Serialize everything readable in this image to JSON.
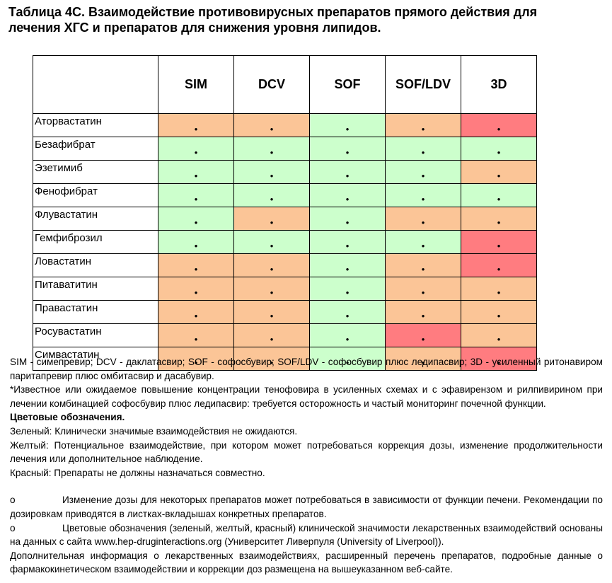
{
  "title_lines": [
    "Таблица 4С.  Взаимодействие противовирусных препаратов прямого действия для",
    "лечения ХГС и препаратов для снижения уровня липидов."
  ],
  "table": {
    "columns": [
      "SIM",
      "DCV",
      "SOF",
      "SOF/LDV",
      "3D"
    ],
    "bullet": "•",
    "palette": {
      "green": "#ccffcc",
      "orange": "#fbc597",
      "red": "#ff7c80"
    },
    "rows": [
      {
        "name": "Аторвастатин",
        "colors": [
          "orange",
          "orange",
          "green",
          "orange",
          "red"
        ]
      },
      {
        "name": "Безафибрат",
        "colors": [
          "green",
          "green",
          "green",
          "green",
          "green"
        ]
      },
      {
        "name": "Эзетимиб",
        "colors": [
          "green",
          "green",
          "green",
          "green",
          "orange"
        ]
      },
      {
        "name": "Фенофибрат",
        "colors": [
          "green",
          "green",
          "green",
          "green",
          "green"
        ]
      },
      {
        "name": "Флувастатин",
        "colors": [
          "green",
          "orange",
          "green",
          "orange",
          "orange"
        ]
      },
      {
        "name": "Гемфиброзил",
        "colors": [
          "green",
          "green",
          "green",
          "green",
          "red"
        ]
      },
      {
        "name": "Ловастатин",
        "colors": [
          "orange",
          "orange",
          "green",
          "orange",
          "red"
        ]
      },
      {
        "name": "Питаватитин",
        "colors": [
          "orange",
          "orange",
          "green",
          "orange",
          "orange"
        ]
      },
      {
        "name": "Правастатин",
        "colors": [
          "orange",
          "orange",
          "green",
          "orange",
          "orange"
        ]
      },
      {
        "name": "Росувастатин",
        "colors": [
          "orange",
          "orange",
          "green",
          "red",
          "orange"
        ]
      },
      {
        "name": "Симвастатин",
        "colors": [
          "orange",
          "orange",
          "green",
          "orange",
          "red"
        ]
      }
    ]
  },
  "notes": {
    "abbreviations": "SIM - симепревир; DCV - даклатасвир; SOF - софосбувир; SOF/LDV - софосбувир плюс ледипасвир; 3D - усиленный ритонавиром паритапревир плюс омбитасвир и дасабувир.",
    "footnote": "*Известное или ожидаемое повышение концентрации тенофовира в усиленных схемах и с эфавирензом и рилпивирином при лечении комбинацией софосбувир плюс ледипасвир: требуется осторожность и частый мониторинг почечной функции.",
    "legend_heading": "Цветовые обозначения.",
    "green": "Зеленый: Клинически значимые взаимодействия не ожидаются.",
    "yellow": "Желтый: Потенциальное взаимодействие, при котором может потребоваться коррекция дозы, изменение продолжительности лечения или дополнительное наблюдение.",
    "red": "Красный: Препараты не должны назначаться совместно.",
    "items": [
      {
        "marker": "o",
        "text": "Изменение дозы для некоторых препаратов может потребоваться в зависимости от функции печени. Рекомендации по дозировкам приводятся в листках-вкладышах конкретных препаратов."
      },
      {
        "marker": "o",
        "text": "Цветовые обозначения (зеленый, желтый, красный) клинической значимости лекарственных взаимодействий основаны на данных с сайта  www.hep-druginteractions.org  (Университет Ливерпуля (University of Liverpool))."
      }
    ],
    "closing": "Дополнительная информация о лекарственных взаимодействиях, расширенный перечень препаратов, подробные данные о фармакокинетическом взаимодействии и коррекции доз размещена на вышеуказанном веб-сайте."
  }
}
